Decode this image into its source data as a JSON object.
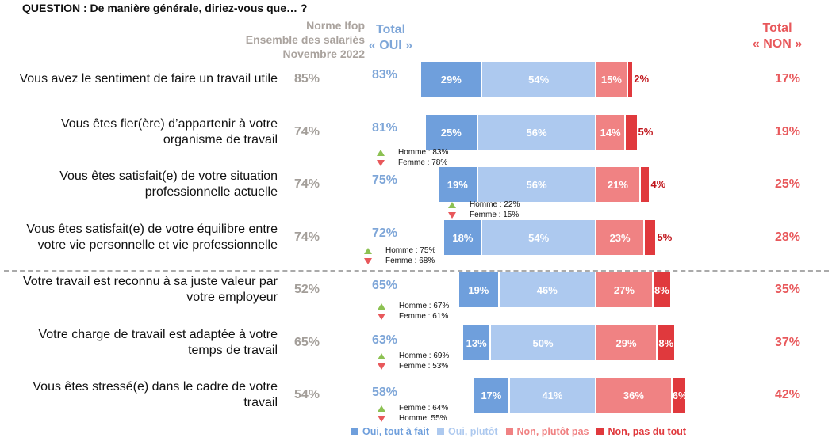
{
  "question": "QUESTION : De manière générale, diriez-vous que… ?",
  "headers": {
    "norme": [
      "Norme Ifop",
      "Ensemble des salariés",
      "Novembre 2022"
    ],
    "oui": [
      "Total",
      "« OUI »"
    ],
    "non": [
      "Total",
      "« NON »"
    ]
  },
  "colors": {
    "oui_tout_a_fait": "#6f9fdc",
    "oui_plutot": "#adc9ef",
    "non_plutot_pas": "#f08283",
    "non_pas_du_tout": "#e0393d"
  },
  "chart_data": {
    "type": "bar",
    "stacked": true,
    "orientation": "horizontal",
    "categories": [
      "Vous avez le sentiment de faire un travail utile",
      "Vous êtes fier(ère) d’appartenir à votre organisme de travail",
      "Vous êtes satisfait(e) de votre situation professionnelle actuelle",
      "Vous êtes satisfait(e) de votre équilibre entre votre vie personnelle et vie professionnelle",
      "Votre travail est reconnu à sa juste valeur par votre employeur",
      "Votre charge de travail est adaptée à votre temps de travail",
      "Vous êtes stressé(e) dans le cadre de votre travail"
    ],
    "series": [
      {
        "name": "Oui, tout à fait",
        "values": [
          29,
          25,
          19,
          18,
          19,
          13,
          17
        ]
      },
      {
        "name": "Oui, plutôt",
        "values": [
          54,
          56,
          56,
          54,
          46,
          50,
          41
        ]
      },
      {
        "name": "Non, plutôt pas",
        "values": [
          15,
          14,
          21,
          23,
          27,
          29,
          36
        ]
      },
      {
        "name": "Non, pas du tout",
        "values": [
          2,
          5,
          4,
          5,
          8,
          8,
          6
        ]
      }
    ],
    "legend": "bottom"
  },
  "rows": [
    {
      "lines": [
        "Vous avez le sentiment de faire un travail utile"
      ],
      "norme": "85%",
      "oui": "83%",
      "non": "17%",
      "gender": null
    },
    {
      "lines": [
        "Vous êtes fier(ère) d’appartenir à votre",
        "organisme de travail"
      ],
      "norme": "74%",
      "oui": "81%",
      "non": "19%",
      "gender": [
        "Homme : 83%",
        "Femme : 78%"
      ]
    },
    {
      "lines": [
        "Vous êtes satisfait(e) de votre situation",
        "professionnelle actuelle"
      ],
      "norme": "74%",
      "oui": "75%",
      "non": "25%",
      "gender": [
        "Homme : 22%",
        "Femme : 15%"
      ]
    },
    {
      "lines": [
        "Vous êtes satisfait(e) de votre équilibre entre",
        "votre vie personnelle et vie professionnelle"
      ],
      "norme": "74%",
      "oui": "72%",
      "non": "28%",
      "gender": [
        "Homme : 75%",
        "Femme : 68%"
      ]
    },
    {
      "lines": [
        "Votre travail est reconnu à sa juste valeur par",
        "votre employeur"
      ],
      "norme": "52%",
      "oui": "65%",
      "non": "35%",
      "gender": [
        "Homme : 67%",
        "Femme : 61%"
      ]
    },
    {
      "lines": [
        "Votre charge de travail est adaptée à votre",
        "temps de travail"
      ],
      "norme": "65%",
      "oui": "63%",
      "non": "37%",
      "gender": [
        "Homme : 69%",
        "Femme : 53%"
      ]
    },
    {
      "lines": [
        "Vous êtes stressé(e) dans le cadre de votre",
        "travail"
      ],
      "norme": "54%",
      "oui": "58%",
      "non": "42%",
      "gender": [
        "Femme : 64%",
        "Homme: 55%"
      ]
    }
  ]
}
